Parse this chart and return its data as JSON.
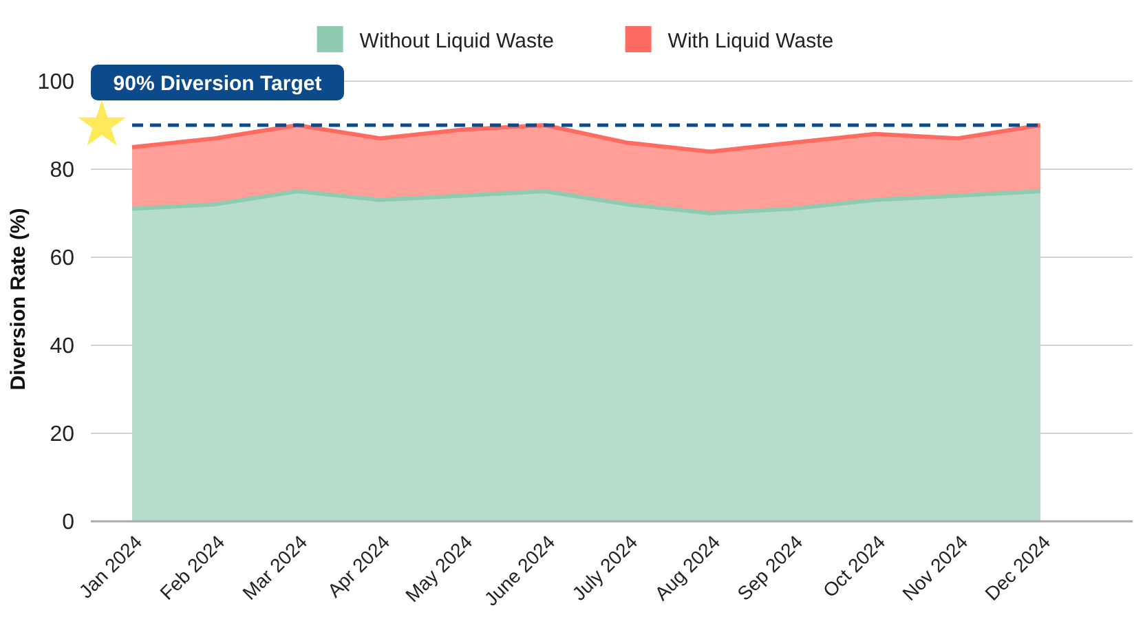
{
  "chart_data": {
    "type": "area",
    "ylabel": "Diversion Rate (%)",
    "categories": [
      "Jan 2024",
      "Feb 2024",
      "Mar 2024",
      "Apr 2024",
      "May 2024",
      "June 2024",
      "July 2024",
      "Aug 2024",
      "Sep 2024",
      "Oct 2024",
      "Nov 2024",
      "Dec 2024"
    ],
    "series": [
      {
        "name": "Without Liquid Waste",
        "color": "#8fcbb0",
        "values": [
          71,
          72,
          75,
          73,
          74,
          75,
          72,
          70,
          71,
          73,
          74,
          75
        ]
      },
      {
        "name": "With Liquid Waste",
        "color": "#ff6b61",
        "values": [
          85,
          87,
          90,
          87,
          89,
          90,
          86,
          84,
          86,
          88,
          87,
          90
        ]
      }
    ],
    "ylim": [
      0,
      100
    ],
    "yticks": [
      0,
      20,
      40,
      60,
      80,
      100
    ],
    "grid": "y",
    "legend": "top",
    "ref_lines": [
      {
        "axis": "y",
        "value": 90,
        "label": "90% Diversion Target",
        "color": "#0b4a8b",
        "line_style": "dashed"
      }
    ]
  }
}
